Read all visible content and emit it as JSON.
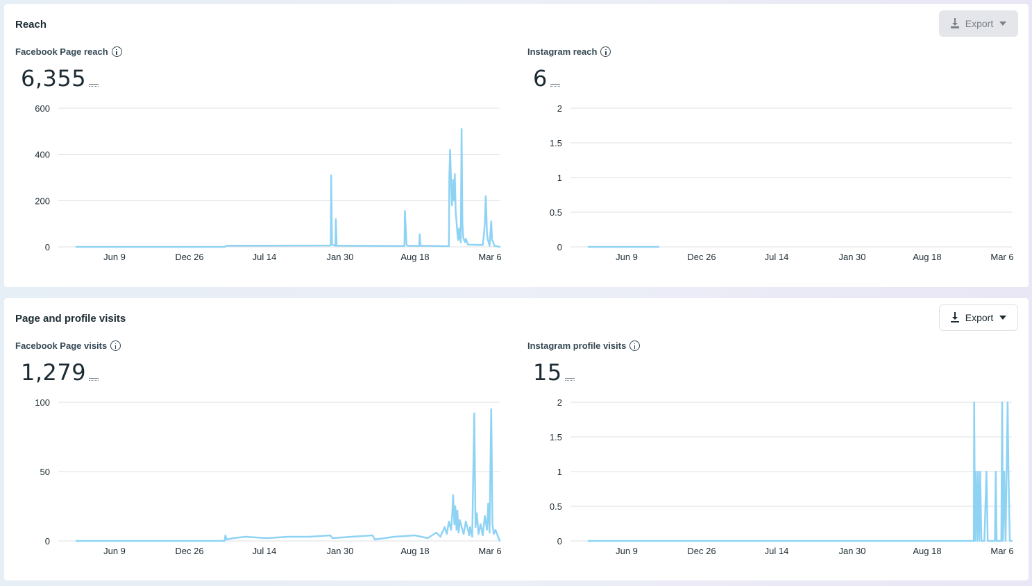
{
  "sections": [
    {
      "title": "Reach",
      "export": {
        "label": "Export",
        "enabled": false
      },
      "panels": [
        {
          "label": "Facebook Page reach",
          "value": "6,355",
          "chart_data": {
            "type": "line",
            "ytick_labels": [
              "600",
              "400",
              "200",
              "0"
            ],
            "yticks": [
              600,
              400,
              200,
              0
            ],
            "ylim": [
              0,
              600
            ],
            "x_labels": [
              "Jun 9",
              "Dec 26",
              "Jul 14",
              "Jan 30",
              "Aug 18",
              "Mar 6"
            ],
            "color": "#8fd3f4",
            "series": [
              {
                "points": [
                  [
                    0,
                    0
                  ],
                  [
                    0.35,
                    0
                  ],
                  [
                    0.355,
                    5
                  ],
                  [
                    0.6,
                    6
                  ],
                  [
                    0.601,
                    8
                  ],
                  [
                    0.602,
                    310
                  ],
                  [
                    0.604,
                    10
                  ],
                  [
                    0.612,
                    5
                  ],
                  [
                    0.613,
                    120
                  ],
                  [
                    0.615,
                    5
                  ],
                  [
                    0.775,
                    4
                  ],
                  [
                    0.776,
                    155
                  ],
                  [
                    0.78,
                    10
                  ],
                  [
                    0.782,
                    5
                  ],
                  [
                    0.81,
                    4
                  ],
                  [
                    0.811,
                    55
                  ],
                  [
                    0.813,
                    5
                  ],
                  [
                    0.88,
                    3
                  ],
                  [
                    0.881,
                    300
                  ],
                  [
                    0.883,
                    420
                  ],
                  [
                    0.885,
                    280
                  ],
                  [
                    0.887,
                    180
                  ],
                  [
                    0.89,
                    290
                  ],
                  [
                    0.892,
                    200
                  ],
                  [
                    0.894,
                    315
                  ],
                  [
                    0.896,
                    150
                  ],
                  [
                    0.898,
                    110
                  ],
                  [
                    0.9,
                    60
                  ],
                  [
                    0.902,
                    30
                  ],
                  [
                    0.904,
                    80
                  ],
                  [
                    0.906,
                    40
                  ],
                  [
                    0.908,
                    20
                  ],
                  [
                    0.91,
                    510
                  ],
                  [
                    0.912,
                    100
                  ],
                  [
                    0.914,
                    40
                  ],
                  [
                    0.918,
                    20
                  ],
                  [
                    0.92,
                    35
                  ],
                  [
                    0.925,
                    10
                  ],
                  [
                    0.96,
                    8
                  ],
                  [
                    0.962,
                    40
                  ],
                  [
                    0.965,
                    100
                  ],
                  [
                    0.967,
                    220
                  ],
                  [
                    0.97,
                    60
                  ],
                  [
                    0.972,
                    30
                  ],
                  [
                    0.974,
                    20
                  ],
                  [
                    0.976,
                    5
                  ],
                  [
                    0.98,
                    110
                  ],
                  [
                    0.982,
                    30
                  ],
                  [
                    0.985,
                    20
                  ],
                  [
                    0.987,
                    5
                  ],
                  [
                    1,
                    0
                  ]
                ]
              }
            ]
          }
        },
        {
          "label": "Instagram reach",
          "value": "6",
          "chart_data": {
            "type": "line",
            "ytick_labels": [
              "2",
              "1.5",
              "1",
              "0.5",
              "0"
            ],
            "yticks": [
              2,
              1.5,
              1,
              0.5,
              0
            ],
            "ylim": [
              0,
              2
            ],
            "x_labels": [
              "Jun 9",
              "Dec 26",
              "Jul 14",
              "Jan 30",
              "Aug 18",
              "Mar 6"
            ],
            "color": "#8fd3f4",
            "series": [
              {
                "points": [
                  [
                    0,
                    0
                  ],
                  [
                    0.165,
                    0
                  ]
                ]
              }
            ]
          }
        }
      ]
    },
    {
      "title": "Page and profile visits",
      "export": {
        "label": "Export",
        "enabled": true
      },
      "panels": [
        {
          "label": "Facebook Page visits",
          "value": "1,279",
          "chart_data": {
            "type": "line",
            "ytick_labels": [
              "100",
              "50",
              "0"
            ],
            "yticks": [
              100,
              50,
              0
            ],
            "ylim": [
              0,
              100
            ],
            "x_labels": [
              "Jun 9",
              "Dec 26",
              "Jul 14",
              "Jan 30",
              "Aug 18",
              "Mar 6"
            ],
            "color": "#8fd3f4",
            "series": [
              {
                "points": [
                  [
                    0,
                    0
                  ],
                  [
                    0.35,
                    0
                  ],
                  [
                    0.352,
                    4
                  ],
                  [
                    0.355,
                    1
                  ],
                  [
                    0.37,
                    2
                  ],
                  [
                    0.4,
                    3
                  ],
                  [
                    0.45,
                    2
                  ],
                  [
                    0.5,
                    3
                  ],
                  [
                    0.55,
                    3
                  ],
                  [
                    0.6,
                    4
                  ],
                  [
                    0.605,
                    2
                  ],
                  [
                    0.65,
                    3
                  ],
                  [
                    0.7,
                    4
                  ],
                  [
                    0.705,
                    1
                  ],
                  [
                    0.75,
                    3
                  ],
                  [
                    0.8,
                    4
                  ],
                  [
                    0.83,
                    2
                  ],
                  [
                    0.85,
                    6
                  ],
                  [
                    0.86,
                    3
                  ],
                  [
                    0.87,
                    10
                  ],
                  [
                    0.875,
                    5
                  ],
                  [
                    0.88,
                    14
                  ],
                  [
                    0.885,
                    8
                  ],
                  [
                    0.888,
                    20
                  ],
                  [
                    0.89,
                    33
                  ],
                  [
                    0.893,
                    12
                  ],
                  [
                    0.895,
                    25
                  ],
                  [
                    0.898,
                    8
                  ],
                  [
                    0.9,
                    22
                  ],
                  [
                    0.903,
                    6
                  ],
                  [
                    0.906,
                    15
                  ],
                  [
                    0.91,
                    10
                  ],
                  [
                    0.915,
                    5
                  ],
                  [
                    0.92,
                    14
                  ],
                  [
                    0.925,
                    8
                  ],
                  [
                    0.928,
                    4
                  ],
                  [
                    0.93,
                    10
                  ],
                  [
                    0.935,
                    3
                  ],
                  [
                    0.94,
                    92
                  ],
                  [
                    0.943,
                    10
                  ],
                  [
                    0.946,
                    20
                  ],
                  [
                    0.95,
                    5
                  ],
                  [
                    0.955,
                    12
                  ],
                  [
                    0.96,
                    4
                  ],
                  [
                    0.965,
                    18
                  ],
                  [
                    0.97,
                    8
                  ],
                  [
                    0.973,
                    27
                  ],
                  [
                    0.976,
                    6
                  ],
                  [
                    0.98,
                    95
                  ],
                  [
                    0.983,
                    12
                  ],
                  [
                    0.986,
                    5
                  ],
                  [
                    0.99,
                    8
                  ],
                  [
                    1,
                    0
                  ]
                ]
              }
            ]
          }
        },
        {
          "label": "Instagram profile visits",
          "value": "15",
          "chart_data": {
            "type": "line",
            "ytick_labels": [
              "2",
              "1.5",
              "1",
              "0.5",
              "0"
            ],
            "yticks": [
              2,
              1.5,
              1,
              0.5,
              0
            ],
            "ylim": [
              0,
              2
            ],
            "x_labels": [
              "Jun 9",
              "Dec 26",
              "Jul 14",
              "Jan 30",
              "Aug 18",
              "Mar 6"
            ],
            "color": "#8fd3f4",
            "series": [
              {
                "points": [
                  [
                    0,
                    0
                  ],
                  [
                    0.91,
                    0
                  ],
                  [
                    0.911,
                    2
                  ],
                  [
                    0.913,
                    0
                  ],
                  [
                    0.915,
                    1
                  ],
                  [
                    0.918,
                    0
                  ],
                  [
                    0.92,
                    1
                  ],
                  [
                    0.923,
                    0
                  ],
                  [
                    0.925,
                    1
                  ],
                  [
                    0.928,
                    0
                  ],
                  [
                    0.935,
                    0
                  ],
                  [
                    0.94,
                    1
                  ],
                  [
                    0.943,
                    0
                  ],
                  [
                    0.96,
                    0
                  ],
                  [
                    0.962,
                    1
                  ],
                  [
                    0.964,
                    0
                  ],
                  [
                    0.975,
                    0
                  ],
                  [
                    0.977,
                    2
                  ],
                  [
                    0.979,
                    0
                  ],
                  [
                    0.982,
                    1
                  ],
                  [
                    0.985,
                    0
                  ],
                  [
                    0.99,
                    2
                  ],
                  [
                    0.992,
                    1
                  ],
                  [
                    0.995,
                    0
                  ],
                  [
                    1,
                    0
                  ]
                ]
              }
            ]
          }
        }
      ]
    }
  ]
}
